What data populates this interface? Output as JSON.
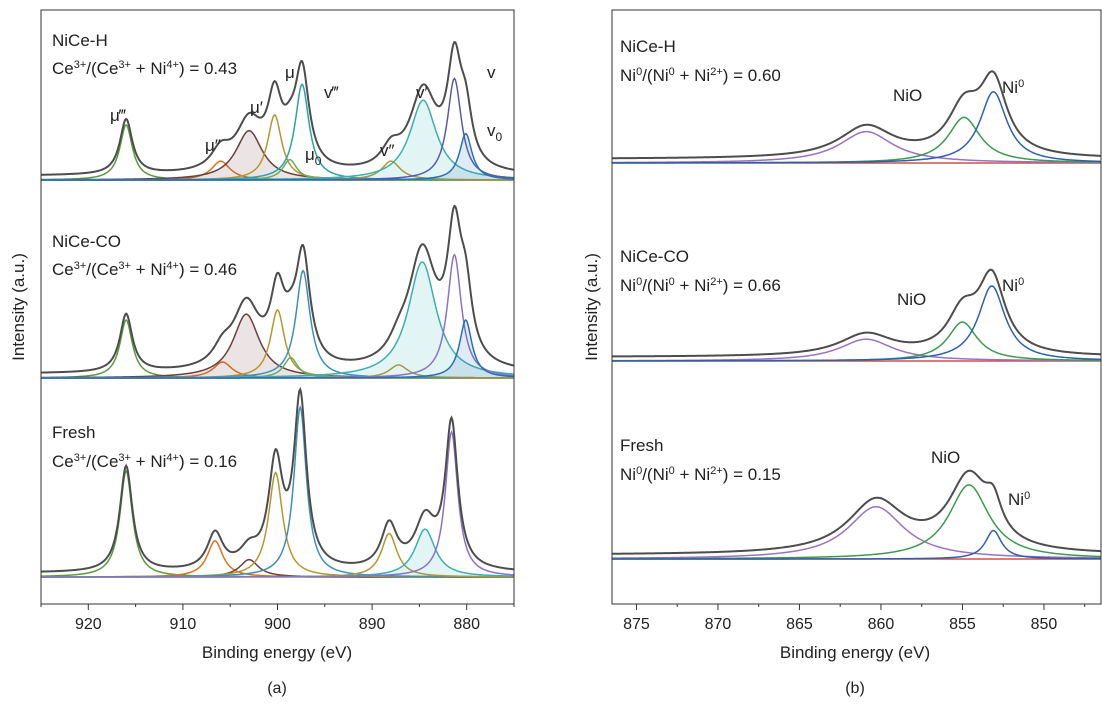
{
  "chart_data": [
    {
      "type": "line",
      "panel_label": "(a)",
      "xlabel": "Binding energy (eV)",
      "ylabel": "Intensity (a.u.)",
      "xlim": [
        925,
        875
      ],
      "x_ticks": [
        "920",
        "910",
        "900",
        "890",
        "880"
      ],
      "x_tick_values": [
        920,
        910,
        900,
        890,
        880
      ],
      "grid": false,
      "baseline_color": "#6fa85a",
      "peak_labels": {
        "mu3": "μ‴",
        "mu2": "μ″",
        "mu1": "μ′",
        "mu": "μ",
        "v3": "v‴",
        "mu0": "μ",
        "mu0_sub": "0",
        "v2": "v″",
        "v1": "v′",
        "v": "v",
        "v0": "v",
        "v0_sub": "0"
      },
      "samples": [
        {
          "name": "NiCe-H",
          "ratio_base1": "Ce",
          "ratio_sup1": "3+",
          "ratio_mid1": "/(Ce",
          "ratio_sup2": "3+",
          "ratio_mid2": " + Ni",
          "ratio_sup3": "4+",
          "ratio_end": ") = 0.43",
          "envelope_color": "#4d4d4d",
          "peaks": [
            {
              "center": 916.0,
              "height": 0.38,
              "width": 0.8,
              "color": "#5b9a3c",
              "fill": false
            },
            {
              "center": 906.0,
              "height": 0.13,
              "width": 1.2,
              "color": "#e2711d",
              "fill": false
            },
            {
              "center": 903.0,
              "height": 0.34,
              "width": 1.7,
              "color": "#6b3f3f",
              "fill": true
            },
            {
              "center": 900.3,
              "height": 0.45,
              "width": 0.9,
              "color": "#b8962e",
              "fill": false
            },
            {
              "center": 898.7,
              "height": 0.14,
              "width": 0.9,
              "color": "#6aab5a",
              "fill": false
            },
            {
              "center": 897.4,
              "height": 0.66,
              "width": 0.9,
              "color": "#2ba3a8",
              "fill": false
            },
            {
              "center": 888.0,
              "height": 0.13,
              "width": 1.2,
              "color": "#b8962e",
              "fill": false
            },
            {
              "center": 884.6,
              "height": 0.55,
              "width": 1.7,
              "color": "#3ab0b0",
              "fill": true
            },
            {
              "center": 881.3,
              "height": 0.7,
              "width": 0.9,
              "color": "#5a5aa8",
              "fill": false
            },
            {
              "center": 880.1,
              "height": 0.32,
              "width": 0.8,
              "color": "#2870b8",
              "fill": true
            }
          ]
        },
        {
          "name": "NiCe-CO",
          "ratio_base1": "Ce",
          "ratio_sup1": "3+",
          "ratio_mid1": "/(Ce",
          "ratio_sup2": "3+",
          "ratio_mid2": " + Ni",
          "ratio_sup3": "4+",
          "ratio_end": ") = 0.46",
          "envelope_color": "#4d4d4d",
          "peaks": [
            {
              "center": 916.0,
              "height": 0.4,
              "width": 0.8,
              "color": "#5b9a3c",
              "fill": false
            },
            {
              "center": 905.8,
              "height": 0.11,
              "width": 1.2,
              "color": "#e2711d",
              "fill": false
            },
            {
              "center": 903.3,
              "height": 0.44,
              "width": 1.7,
              "color": "#6b3f3f",
              "fill": true
            },
            {
              "center": 900.0,
              "height": 0.47,
              "width": 0.9,
              "color": "#b8962e",
              "fill": false
            },
            {
              "center": 898.6,
              "height": 0.14,
              "width": 0.9,
              "color": "#6aab5a",
              "fill": false
            },
            {
              "center": 897.3,
              "height": 0.74,
              "width": 0.9,
              "color": "#3d8fc0",
              "fill": false
            },
            {
              "center": 887.2,
              "height": 0.09,
              "width": 1.2,
              "color": "#b8962e",
              "fill": false
            },
            {
              "center": 884.7,
              "height": 0.8,
              "width": 1.8,
              "color": "#3ab0b0",
              "fill": true
            },
            {
              "center": 881.3,
              "height": 0.85,
              "width": 0.9,
              "color": "#8a72c8",
              "fill": false
            },
            {
              "center": 880.1,
              "height": 0.4,
              "width": 0.8,
              "color": "#2870b8",
              "fill": true
            }
          ]
        },
        {
          "name": "Fresh",
          "ratio_base1": "Ce",
          "ratio_sup1": "3+",
          "ratio_mid1": "/(Ce",
          "ratio_sup2": "3+",
          "ratio_mid2": " + Ni",
          "ratio_sup3": "4+",
          "ratio_end": ") = 0.16",
          "envelope_color": "#4d4d4d",
          "peaks": [
            {
              "center": 916.0,
              "height": 0.73,
              "width": 0.8,
              "color": "#5b9a3c",
              "fill": false
            },
            {
              "center": 906.6,
              "height": 0.25,
              "width": 1.0,
              "color": "#e2711d",
              "fill": false
            },
            {
              "center": 903.0,
              "height": 0.12,
              "width": 1.2,
              "color": "#6b3f3f",
              "fill": false
            },
            {
              "center": 900.2,
              "height": 0.72,
              "width": 0.9,
              "color": "#b8962e",
              "fill": false
            },
            {
              "center": 897.6,
              "height": 1.17,
              "width": 0.8,
              "color": "#3d8fc0",
              "fill": false
            },
            {
              "center": 888.2,
              "height": 0.3,
              "width": 1.0,
              "color": "#b8962e",
              "fill": false
            },
            {
              "center": 884.4,
              "height": 0.33,
              "width": 1.3,
              "color": "#3ab0b0",
              "fill": true
            },
            {
              "center": 881.6,
              "height": 1.0,
              "width": 0.8,
              "color": "#8a72c8",
              "fill": false
            }
          ]
        }
      ]
    },
    {
      "type": "line",
      "panel_label": "(b)",
      "xlabel": "Binding energy (eV)",
      "ylabel": "Intensity (a.u.)",
      "xlim": [
        876.5,
        846.5
      ],
      "x_ticks": [
        "875",
        "870",
        "865",
        "860",
        "855",
        "850"
      ],
      "x_tick_values": [
        875,
        870,
        865,
        860,
        855,
        850
      ],
      "grid": false,
      "baseline_color": "#d0504a",
      "samples": [
        {
          "name": "NiCe-H",
          "ratio_base1": "Ni",
          "ratio_sup1": "0",
          "ratio_mid1": "/(Ni",
          "ratio_sup2": "0",
          "ratio_mid2": " + Ni",
          "ratio_sup3": "2+",
          "ratio_end": ") = 0.60",
          "label_nio": "NiO",
          "label_ni0": "Ni",
          "label_ni0_sup": "0",
          "envelope_color": "#4d4d4d",
          "peaks": [
            {
              "center": 860.9,
              "height": 0.33,
              "width": 2.0,
              "color": "#9a72c2",
              "fill": false
            },
            {
              "center": 854.9,
              "height": 0.48,
              "width": 1.2,
              "color": "#3c9a50",
              "fill": false
            },
            {
              "center": 853.1,
              "height": 0.75,
              "width": 1.0,
              "color": "#2f5fb0",
              "fill": false
            }
          ]
        },
        {
          "name": "NiCe-CO",
          "ratio_base1": "Ni",
          "ratio_sup1": "0",
          "ratio_mid1": "/(Ni",
          "ratio_sup2": "0",
          "ratio_mid2": " + Ni",
          "ratio_sup3": "2+",
          "ratio_end": ") = 0.66",
          "label_nio": "NiO",
          "label_ni0": "Ni",
          "label_ni0_sup": "0",
          "envelope_color": "#4d4d4d",
          "peaks": [
            {
              "center": 860.9,
              "height": 0.23,
              "width": 2.0,
              "color": "#9a72c2",
              "fill": false
            },
            {
              "center": 855.0,
              "height": 0.41,
              "width": 1.1,
              "color": "#3c9a50",
              "fill": false
            },
            {
              "center": 853.2,
              "height": 0.79,
              "width": 1.0,
              "color": "#2f5fb0",
              "fill": false
            }
          ]
        },
        {
          "name": "Fresh",
          "ratio_base1": "Ni",
          "ratio_sup1": "0",
          "ratio_mid1": "/(Ni",
          "ratio_sup2": "0",
          "ratio_mid2": " + Ni",
          "ratio_sup3": "2+",
          "ratio_end": ") = 0.15",
          "label_nio": "NiO",
          "label_ni0": "Ni",
          "label_ni0_sup": "0",
          "envelope_color": "#4d4d4d",
          "peaks": [
            {
              "center": 860.3,
              "height": 0.55,
              "width": 2.1,
              "color": "#9a72c2",
              "fill": false
            },
            {
              "center": 854.6,
              "height": 0.78,
              "width": 1.5,
              "color": "#3c9a50",
              "fill": false
            },
            {
              "center": 853.1,
              "height": 0.3,
              "width": 0.6,
              "color": "#2f5fb0",
              "fill": false
            }
          ]
        }
      ]
    }
  ]
}
